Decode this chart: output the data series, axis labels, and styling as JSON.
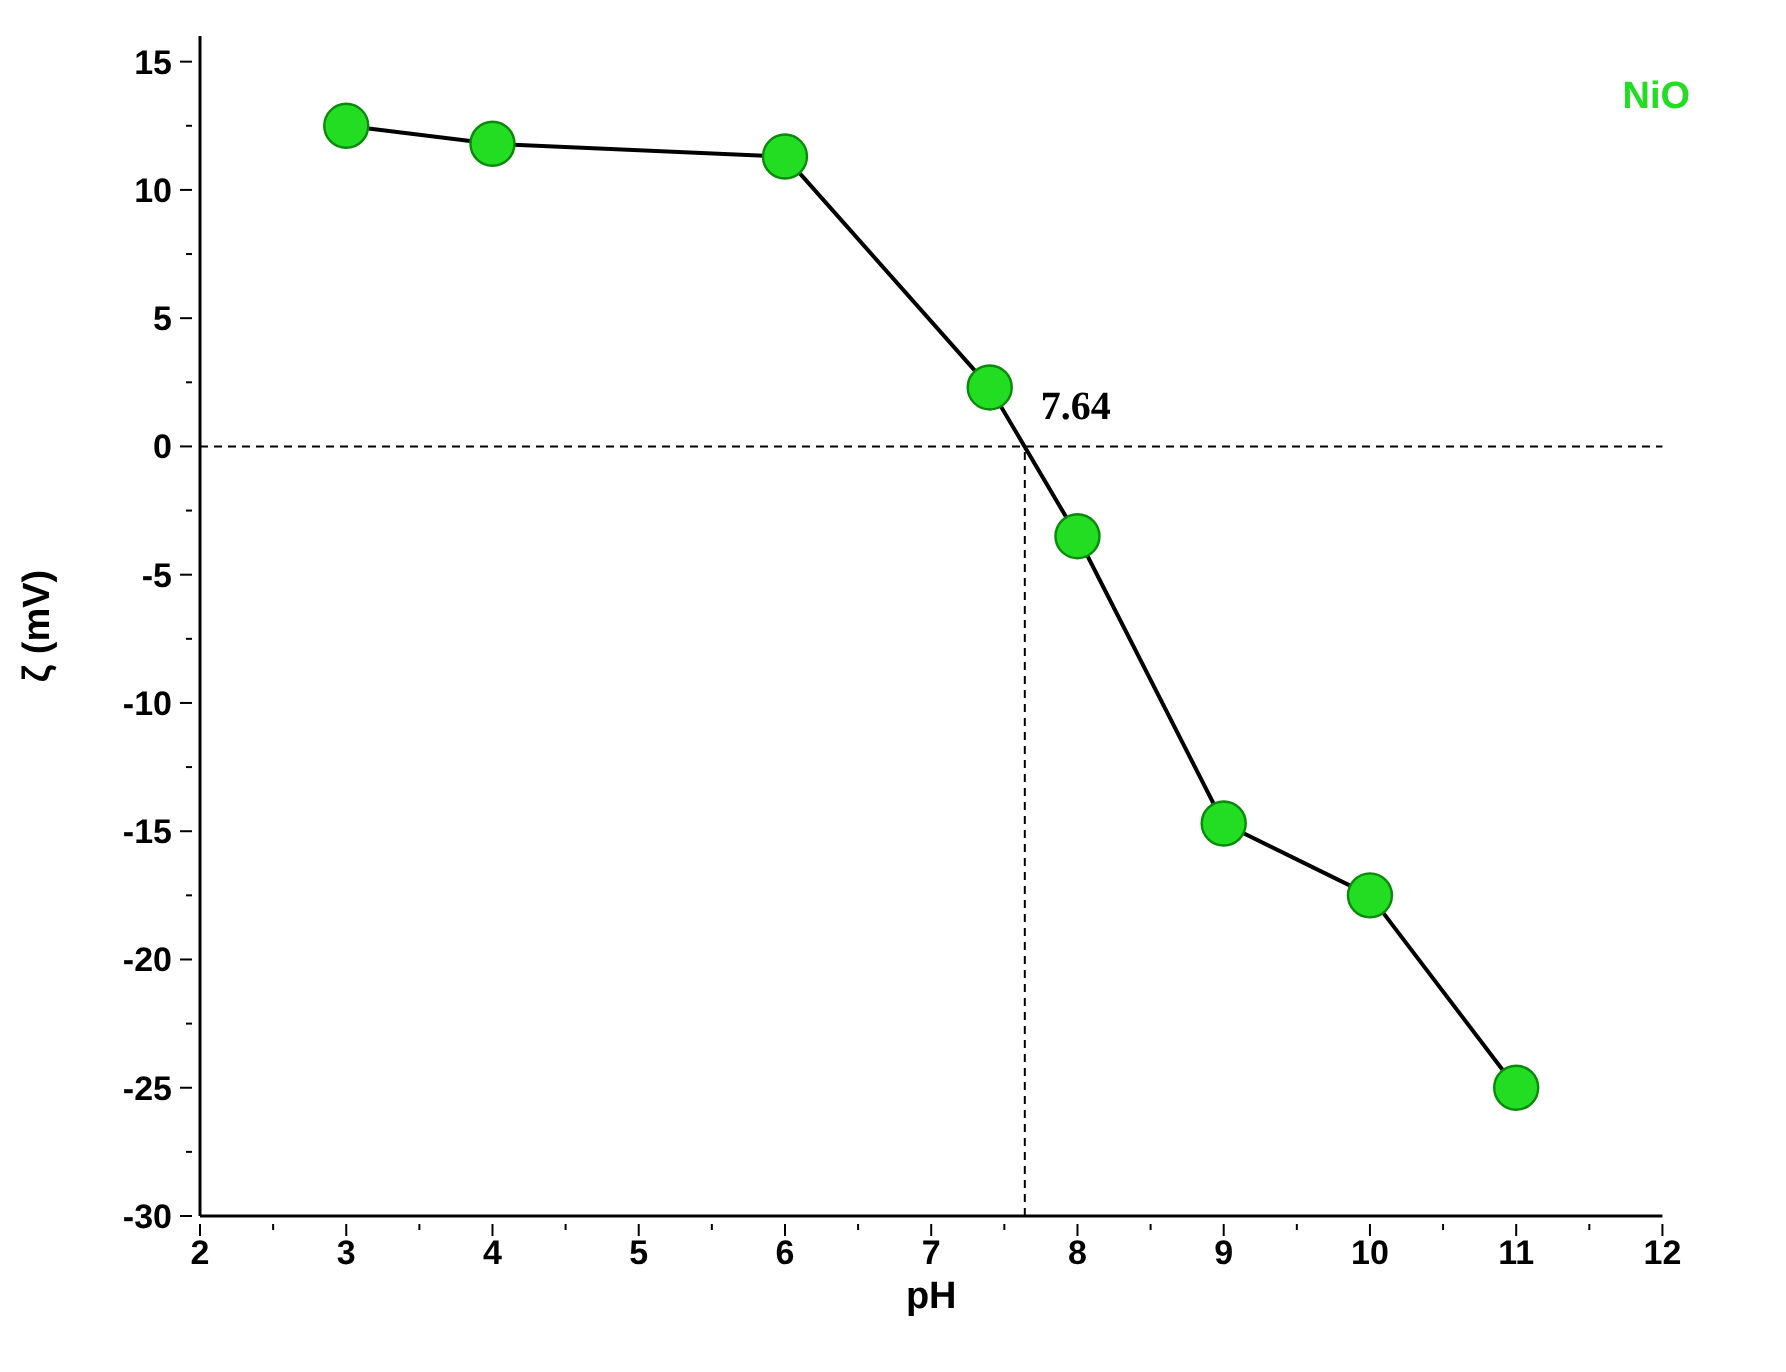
{
  "chart_data": {
    "type": "line",
    "xlabel": "pH",
    "ylabel": "ζ (mV)",
    "x": [
      3,
      4,
      6,
      7.4,
      8,
      9,
      10,
      11
    ],
    "series": [
      {
        "name": "NiO",
        "color": "#22dd22",
        "values": [
          12.5,
          11.8,
          11.3,
          2.3,
          -3.5,
          -14.7,
          -17.5,
          -25
        ]
      }
    ],
    "xlim": [
      2,
      12
    ],
    "xticks": [
      2,
      {
        "value": 2.5,
        "label": null
      },
      3,
      {
        "value": 3.5,
        "label": null
      },
      4,
      {
        "value": 4.5,
        "label": null
      },
      5,
      {
        "value": 5.5,
        "label": null
      },
      6,
      {
        "value": 6.5,
        "label": null
      },
      7,
      {
        "value": 7.5,
        "label": null
      },
      8,
      {
        "value": 8.5,
        "label": null
      },
      9,
      {
        "value": 9.5,
        "label": null
      },
      10,
      {
        "value": 10.5,
        "label": null
      },
      11,
      {
        "value": 11.5,
        "label": null
      },
      12
    ],
    "ylim": [
      -30,
      16
    ],
    "yticks": [
      -30,
      {
        "value": -27.5,
        "label": null
      },
      -25,
      {
        "value": -22.5,
        "label": null
      },
      -20,
      {
        "value": -17.5,
        "label": null
      },
      -15,
      {
        "value": -12.5,
        "label": null
      },
      -10,
      {
        "value": -7.5,
        "label": null
      },
      -5,
      {
        "value": -2.5,
        "label": null
      },
      0,
      {
        "value": 2.5,
        "label": null
      },
      5,
      {
        "value": 7.5,
        "label": null
      },
      10,
      {
        "value": 12.5,
        "label": null
      },
      15
    ],
    "ref_lines": [
      {
        "axis": "y",
        "value": 0,
        "line_style": "dashed",
        "color": "#000000"
      },
      {
        "axis": "x",
        "value": 7.64,
        "line_style": "dashed",
        "color": "#000000"
      }
    ],
    "annotations": [
      {
        "text": "7.64",
        "x": 7.64,
        "y": 0
      }
    ],
    "marker": "circle",
    "line_style": "solid",
    "grid": false,
    "legend": "top right"
  }
}
